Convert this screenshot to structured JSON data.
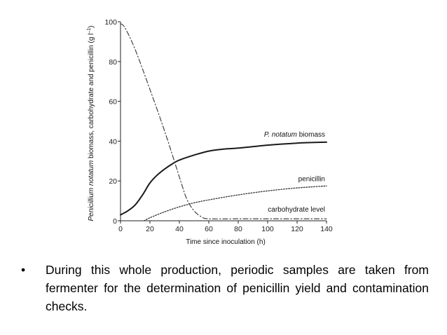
{
  "chart_data": {
    "type": "line",
    "xlabel": "Time since inoculation (h)",
    "ylabel": "Penicillium notatum biomass, carbohydrate and penicillin (g l⁻¹)",
    "ylabel_parts": {
      "italic": "Penicillium notatum",
      "rest": " biomass, carbohydrate and penicillin (g l",
      "sup": "–1",
      "close": ")"
    },
    "xlim": [
      0,
      140
    ],
    "ylim": [
      0,
      100
    ],
    "x_ticks": [
      "0",
      "20",
      "40",
      "60",
      "80",
      "100",
      "120",
      "140"
    ],
    "y_ticks": [
      "0",
      "20",
      "40",
      "60",
      "80",
      "100"
    ],
    "grid": false,
    "series": [
      {
        "name": "P. notatum biomass",
        "label_italic": "P. notatum",
        "label_rest": " biomass",
        "style": "solid",
        "x": [
          0,
          5,
          10,
          15,
          20,
          25,
          30,
          35,
          40,
          50,
          60,
          70,
          80,
          100,
          120,
          140
        ],
        "y": [
          3,
          5,
          8,
          13,
          19,
          23,
          26,
          28.5,
          30.5,
          33,
          35,
          36,
          36.5,
          38,
          39,
          39.5
        ]
      },
      {
        "name": "penicillin",
        "style": "dotted",
        "x": [
          16,
          20,
          30,
          40,
          50,
          60,
          80,
          100,
          120,
          140
        ],
        "y": [
          0,
          1.5,
          4.5,
          7,
          9,
          10.5,
          13,
          15,
          16.5,
          17.5
        ]
      },
      {
        "name": "carbohydrate level",
        "style": "dashdot",
        "x": [
          0,
          3,
          10,
          20,
          30,
          40,
          45,
          50,
          55,
          60,
          80,
          100,
          120,
          140
        ],
        "y": [
          99,
          97,
          86,
          66,
          45,
          22,
          11,
          5,
          2,
          1,
          1,
          1,
          1,
          1
        ]
      }
    ]
  },
  "bullet": {
    "symbol": "•",
    "text": "During this whole production, periodic samples are  taken from fermenter for the determination of  penicillin yield and contamination checks."
  }
}
